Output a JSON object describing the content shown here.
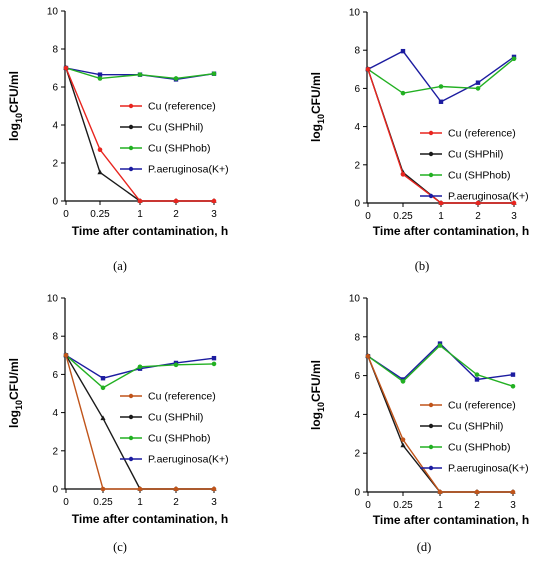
{
  "chart_data": [
    {
      "type": "line",
      "panel_label": "(a)",
      "xlabel": "Time after contamination, h",
      "ylabel_main": "log",
      "ylabel_sub": "10",
      "ylabel_rest": "CFU/ml",
      "categories": [
        "0",
        "0.25",
        "1",
        "2",
        "3"
      ],
      "ylim": [
        0,
        10
      ],
      "yticks": [
        0,
        2,
        4,
        6,
        8,
        10
      ],
      "legend_position": "center-right",
      "series": [
        {
          "name": "Cu (reference)",
          "color": "#e8251f",
          "values": [
            7.0,
            2.7,
            0.0,
            0.0,
            0.0
          ]
        },
        {
          "name": "Cu (SHPhil)",
          "color": "#1a1a1a",
          "values": [
            7.0,
            1.5,
            0.0,
            0.0,
            0.0
          ]
        },
        {
          "name": "Cu (SHPhob)",
          "color": "#22b022",
          "values": [
            7.0,
            6.45,
            6.65,
            6.45,
            6.7
          ]
        },
        {
          "name": "P.aeruginosa(K+)",
          "color": "#1c1ca0",
          "values": [
            7.0,
            6.65,
            6.65,
            6.4,
            6.7
          ]
        }
      ]
    },
    {
      "type": "line",
      "panel_label": "(b)",
      "xlabel": "Time after contamination, h",
      "ylabel_main": "log",
      "ylabel_sub": "10",
      "ylabel_rest": "CFU/ml",
      "categories": [
        "0",
        "0.25",
        "1",
        "2",
        "3"
      ],
      "ylim": [
        0,
        10
      ],
      "yticks": [
        0,
        2,
        4,
        6,
        8,
        10
      ],
      "legend_position": "lower-right",
      "series": [
        {
          "name": "Cu (reference)",
          "color": "#e8251f",
          "values": [
            7.0,
            1.5,
            0.0,
            0.0,
            0.0
          ]
        },
        {
          "name": "Cu (SHPhil)",
          "color": "#1a1a1a",
          "values": [
            7.0,
            1.6,
            0.0,
            0.0,
            0.0
          ]
        },
        {
          "name": "Cu (SHPhob)",
          "color": "#22b022",
          "values": [
            7.0,
            5.75,
            6.1,
            6.0,
            7.55
          ]
        },
        {
          "name": "P.aeruginosa(K+)",
          "color": "#1c1ca0",
          "values": [
            7.0,
            7.95,
            5.3,
            6.3,
            7.65
          ]
        }
      ]
    },
    {
      "type": "line",
      "panel_label": "(c)",
      "xlabel": "Time after contamination, h",
      "ylabel_main": "log",
      "ylabel_sub": "10",
      "ylabel_rest": "CFU/ml",
      "categories": [
        "0",
        "0.25",
        "1",
        "2",
        "3"
      ],
      "ylim": [
        0,
        10
      ],
      "yticks": [
        0,
        2,
        4,
        6,
        8,
        10
      ],
      "legend_position": "lower-right",
      "series": [
        {
          "name": "Cu (reference)",
          "color": "#c0541a",
          "values": [
            7.0,
            0.0,
            0.0,
            0.0,
            0.0
          ]
        },
        {
          "name": "Cu (SHPhil)",
          "color": "#1a1a1a",
          "values": [
            7.0,
            3.7,
            0.0,
            0.0,
            0.0
          ]
        },
        {
          "name": "Cu (SHPhob)",
          "color": "#22b022",
          "values": [
            7.0,
            5.3,
            6.4,
            6.5,
            6.55
          ]
        },
        {
          "name": "P.aeruginosa(K+)",
          "color": "#1c1ca0",
          "values": [
            7.0,
            5.8,
            6.3,
            6.6,
            6.85
          ]
        }
      ]
    },
    {
      "type": "line",
      "panel_label": "(d)",
      "xlabel": "Time after contamination, h",
      "ylabel_main": "log",
      "ylabel_sub": "10",
      "ylabel_rest": "CFU/ml",
      "categories": [
        "0",
        "0.25",
        "1",
        "2",
        "3"
      ],
      "ylim": [
        0,
        10
      ],
      "yticks": [
        0,
        2,
        4,
        6,
        8,
        10
      ],
      "legend_position": "lower-right",
      "series": [
        {
          "name": "Cu (reference)",
          "color": "#c0541a",
          "values": [
            7.0,
            2.7,
            0.0,
            0.0,
            0.0
          ]
        },
        {
          "name": "Cu (SHPhil)",
          "color": "#1a1a1a",
          "values": [
            7.0,
            2.4,
            0.0,
            0.0,
            0.0
          ]
        },
        {
          "name": "Cu (SHPhob)",
          "color": "#22b022",
          "values": [
            7.0,
            5.7,
            7.55,
            6.05,
            5.45
          ]
        },
        {
          "name": "P.aeruginosa(K+)",
          "color": "#1c1ca0",
          "values": [
            7.0,
            5.8,
            7.65,
            5.8,
            6.05
          ]
        }
      ]
    }
  ]
}
